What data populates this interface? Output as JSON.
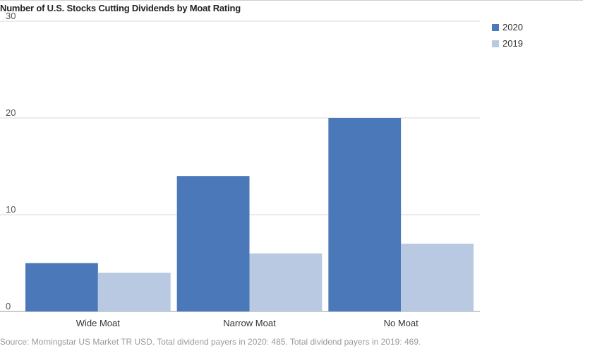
{
  "chart_data": {
    "type": "bar",
    "title": "Number of U.S. Stocks Cutting Dividends by Moat Rating",
    "categories": [
      "Wide Moat",
      "Narrow Moat",
      "No Moat"
    ],
    "series": [
      {
        "name": "2020",
        "values": [
          5,
          14,
          20
        ],
        "color": "#4a78b8"
      },
      {
        "name": "2019",
        "values": [
          4,
          6,
          7
        ],
        "color": "#b9c9e1"
      }
    ],
    "ylim": [
      0,
      30
    ],
    "yticks": [
      0,
      10,
      20,
      30
    ],
    "grid": true,
    "legend": "top-right",
    "xlabel": "",
    "ylabel": ""
  },
  "source": "Source: Morningstar US Market TR USD. Total dividend payers in 2020: 485. Total dividend payers in 2019: 469."
}
